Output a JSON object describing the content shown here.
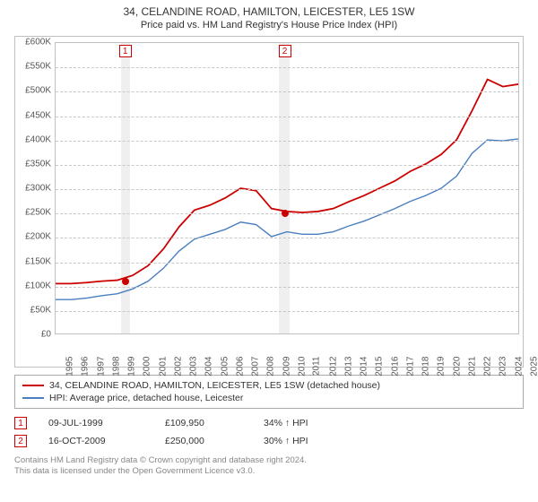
{
  "title": "34, CELANDINE ROAD, HAMILTON, LEICESTER, LE5 1SW",
  "subtitle": "Price paid vs. HM Land Registry's House Price Index (HPI)",
  "chart": {
    "type": "line",
    "background_color": "#ffffff",
    "grid_color": "#c8c8c8",
    "border_color": "#c0c0c0",
    "y": {
      "min": 0,
      "max": 600000,
      "step": 50000,
      "prefix": "£",
      "suffix_k": true,
      "labels": [
        "£0",
        "£50K",
        "£100K",
        "£150K",
        "£200K",
        "£250K",
        "£300K",
        "£350K",
        "£400K",
        "£450K",
        "£500K",
        "£550K",
        "£600K"
      ]
    },
    "x": {
      "min": 1995,
      "max": 2025,
      "ticks": [
        1995,
        1996,
        1997,
        1998,
        1999,
        2000,
        2001,
        2002,
        2003,
        2004,
        2005,
        2006,
        2007,
        2008,
        2009,
        2010,
        2011,
        2012,
        2013,
        2014,
        2015,
        2016,
        2017,
        2018,
        2019,
        2020,
        2021,
        2022,
        2023,
        2024,
        2025
      ]
    },
    "vbands": [
      {
        "from": 1999.2,
        "to": 1999.8
      },
      {
        "from": 2009.4,
        "to": 2010.1
      }
    ],
    "series": [
      {
        "name": "34, CELANDINE ROAD, HAMILTON, LEICESTER, LE5 1SW (detached house)",
        "color": "#cc0000",
        "width": 1.8,
        "points": [
          [
            1995,
            103000
          ],
          [
            1996,
            103000
          ],
          [
            1997,
            105000
          ],
          [
            1998,
            108000
          ],
          [
            1999,
            110000
          ],
          [
            2000,
            120000
          ],
          [
            2001,
            140000
          ],
          [
            2002,
            175000
          ],
          [
            2003,
            220000
          ],
          [
            2004,
            255000
          ],
          [
            2005,
            265000
          ],
          [
            2006,
            280000
          ],
          [
            2007,
            300000
          ],
          [
            2008,
            295000
          ],
          [
            2009,
            258000
          ],
          [
            2010,
            252000
          ],
          [
            2011,
            250000
          ],
          [
            2012,
            252000
          ],
          [
            2013,
            258000
          ],
          [
            2014,
            272000
          ],
          [
            2015,
            285000
          ],
          [
            2016,
            300000
          ],
          [
            2017,
            315000
          ],
          [
            2018,
            335000
          ],
          [
            2019,
            350000
          ],
          [
            2020,
            370000
          ],
          [
            2021,
            400000
          ],
          [
            2022,
            460000
          ],
          [
            2023,
            525000
          ],
          [
            2024,
            510000
          ],
          [
            2025,
            515000
          ]
        ]
      },
      {
        "name": "HPI: Average price, detached house, Leicester",
        "color": "#4a7fbf",
        "width": 1.4,
        "points": [
          [
            1995,
            70000
          ],
          [
            1996,
            70000
          ],
          [
            1997,
            73000
          ],
          [
            1998,
            78000
          ],
          [
            1999,
            82000
          ],
          [
            2000,
            92000
          ],
          [
            2001,
            108000
          ],
          [
            2002,
            135000
          ],
          [
            2003,
            170000
          ],
          [
            2004,
            195000
          ],
          [
            2005,
            205000
          ],
          [
            2006,
            215000
          ],
          [
            2007,
            230000
          ],
          [
            2008,
            225000
          ],
          [
            2009,
            200000
          ],
          [
            2010,
            210000
          ],
          [
            2011,
            205000
          ],
          [
            2012,
            205000
          ],
          [
            2013,
            210000
          ],
          [
            2014,
            222000
          ],
          [
            2015,
            232000
          ],
          [
            2016,
            245000
          ],
          [
            2017,
            258000
          ],
          [
            2018,
            273000
          ],
          [
            2019,
            285000
          ],
          [
            2020,
            300000
          ],
          [
            2021,
            325000
          ],
          [
            2022,
            372000
          ],
          [
            2023,
            400000
          ],
          [
            2024,
            398000
          ],
          [
            2025,
            402000
          ]
        ]
      }
    ],
    "markers": [
      {
        "n": "1",
        "year": 1999.5,
        "value": 109950,
        "label_top": true
      },
      {
        "n": "2",
        "year": 2009.8,
        "value": 250000,
        "label_top": true
      }
    ]
  },
  "legend": [
    {
      "color": "#cc0000",
      "text": "34, CELANDINE ROAD, HAMILTON, LEICESTER, LE5 1SW (detached house)"
    },
    {
      "color": "#4a7fbf",
      "text": "HPI: Average price, detached house, Leicester"
    }
  ],
  "transactions": [
    {
      "n": "1",
      "date": "09-JUL-1999",
      "price": "£109,950",
      "hpi": "34% ↑ HPI"
    },
    {
      "n": "2",
      "date": "16-OCT-2009",
      "price": "£250,000",
      "hpi": "30% ↑ HPI"
    }
  ],
  "footer": {
    "line1": "Contains HM Land Registry data © Crown copyright and database right 2024.",
    "line2": "This data is licensed under the Open Government Licence v3.0."
  }
}
